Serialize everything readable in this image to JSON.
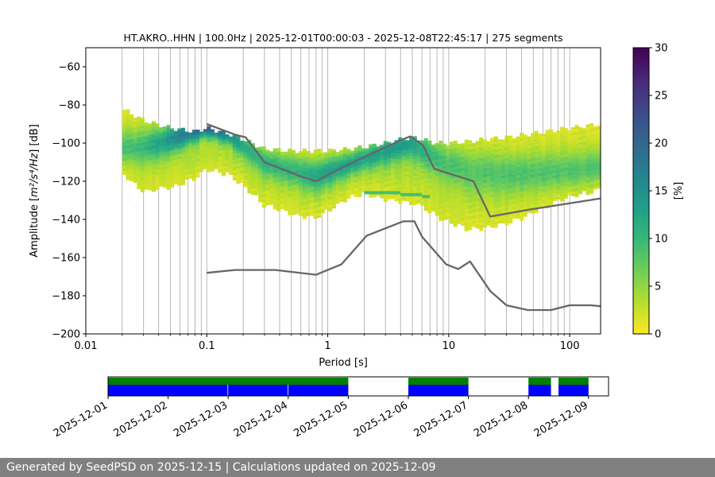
{
  "chart_data": {
    "type": "heatmap",
    "title": "HT.AKRO..HHN | 100.0Hz | 2025-12-01T00:00:03 - 2025-12-08T22:45:17 | 275 segments",
    "xlabel": "Period [s]",
    "ylabel_prefix": "Amplitude [",
    "ylabel_math": "m²/s⁴/Hz",
    "ylabel_suffix": "] [dB]",
    "x_scale": "log",
    "xlim": [
      0.01,
      180
    ],
    "ylim": [
      -200,
      -50
    ],
    "x_ticks": [
      {
        "value": 0.01,
        "label": "0.01"
      },
      {
        "value": 0.1,
        "label": "0.1"
      },
      {
        "value": 1,
        "label": "1"
      },
      {
        "value": 10,
        "label": "10"
      },
      {
        "value": 100,
        "label": "100"
      }
    ],
    "y_ticks": [
      {
        "value": -60,
        "label": "−60"
      },
      {
        "value": -80,
        "label": "−80"
      },
      {
        "value": -100,
        "label": "−100"
      },
      {
        "value": -120,
        "label": "−120"
      },
      {
        "value": -140,
        "label": "−140"
      },
      {
        "value": -160,
        "label": "−160"
      },
      {
        "value": -180,
        "label": "−180"
      },
      {
        "value": -200,
        "label": "−200"
      }
    ],
    "grid": "x-major-and-minor",
    "psd_band": {
      "periods": [
        0.02,
        0.03,
        0.05,
        0.08,
        0.1,
        0.15,
        0.2,
        0.3,
        0.5,
        0.8,
        1,
        1.5,
        2,
        3,
        4,
        5,
        6,
        8,
        10,
        15,
        20,
        30,
        50,
        80,
        100,
        180
      ],
      "upper": [
        -82,
        -88,
        -92,
        -94,
        -92,
        -95,
        -98,
        -103,
        -104,
        -104,
        -104,
        -103,
        -102,
        -100,
        -98,
        -97,
        -98,
        -100,
        -100,
        -99,
        -98,
        -97,
        -95,
        -93,
        -92,
        -90
      ],
      "lower": [
        -115,
        -125,
        -123,
        -118,
        -113,
        -116,
        -122,
        -132,
        -137,
        -139,
        -135,
        -128,
        -126,
        -129,
        -130,
        -131,
        -133,
        -138,
        -141,
        -145,
        -144,
        -142,
        -136,
        -130,
        -128,
        -124
      ],
      "mode": [
        -103,
        -102,
        -98,
        -93,
        -91,
        -95,
        -101,
        -110,
        -114,
        -117,
        -115,
        -111,
        -108,
        -104,
        -101,
        -100,
        -103,
        -108,
        -111,
        -114,
        -115,
        -116,
        -116,
        -116,
        -115,
        -113
      ],
      "mode_strength_percent": [
        5,
        7,
        12,
        18,
        20,
        14,
        10,
        8,
        7,
        9,
        10,
        10,
        10,
        11,
        12,
        11,
        9,
        7,
        6,
        5,
        5,
        5,
        5,
        5,
        5,
        5
      ]
    },
    "secondary_band": {
      "periods": [
        2,
        3,
        4,
        5,
        6,
        7
      ],
      "values": [
        -126,
        -126,
        -127,
        -127,
        -128,
        -129
      ],
      "label": "-127 dB ridge 2–7 s"
    },
    "curves": [
      {
        "periods": [
          0.1,
          0.17,
          0.21,
          0.3,
          0.6,
          0.8,
          1.5,
          2.5,
          4,
          4.8,
          6.1,
          7.6,
          16,
          22,
          45,
          180
        ],
        "values": [
          -90,
          -95.5,
          -97,
          -110,
          -117.5,
          -120,
          -111,
          -104.5,
          -98.5,
          -96.5,
          -101,
          -113.5,
          -120,
          -138.5,
          -135,
          -129
        ]
      },
      {
        "periods": [
          0.1,
          0.17,
          0.37,
          0.8,
          1.3,
          2.1,
          4.2,
          5.2,
          6,
          9.5,
          12,
          15,
          22,
          30,
          45,
          70,
          100,
          150,
          180
        ],
        "values": [
          -168,
          -166.5,
          -166.5,
          -169,
          -163.5,
          -148.5,
          -141,
          -141,
          -149,
          -163.5,
          -166,
          -162,
          -177.5,
          -185,
          -187.5,
          -187.5,
          -185,
          -185,
          -185.5
        ]
      }
    ],
    "colorbar": {
      "label": "[%]",
      "range": [
        0,
        30
      ],
      "ticks": [
        {
          "value": 0,
          "label": "0"
        },
        {
          "value": 5,
          "label": "5"
        },
        {
          "value": 10,
          "label": "10"
        },
        {
          "value": 15,
          "label": "15"
        },
        {
          "value": 20,
          "label": "20"
        },
        {
          "value": 25,
          "label": "25"
        },
        {
          "value": 30,
          "label": "30"
        }
      ],
      "colormap": "viridis_r",
      "colors": [
        "#fde725",
        "#b5de2b",
        "#6ece58",
        "#35b779",
        "#1f9e89",
        "#26828e",
        "#31688e",
        "#3e4989",
        "#482878",
        "#440154"
      ]
    },
    "timeline": {
      "start": "2025-12-01",
      "end": "2025-12-09T08:00",
      "tick_labels": [
        "2025-12-01",
        "2025-12-02",
        "2025-12-03",
        "2025-12-04",
        "2025-12-05",
        "2025-12-06",
        "2025-12-07",
        "2025-12-08",
        "2025-12-09"
      ],
      "coverage_intervals": [
        [
          "2025-12-01T00:00",
          "2025-12-05T00:00"
        ],
        [
          "2025-12-06T00:00",
          "2025-12-07T00:00"
        ],
        [
          "2025-12-08T00:00",
          "2025-12-08T09:00"
        ],
        [
          "2025-12-08T12:00",
          "2025-12-09T00:00"
        ]
      ],
      "segment_intervals": [
        [
          "2025-12-01T00:00",
          "2025-12-02T23:45"
        ],
        [
          "2025-12-03T00:00",
          "2025-12-03T23:45"
        ],
        [
          "2025-12-04T00:00",
          "2025-12-05T00:00"
        ],
        [
          "2025-12-06T00:00",
          "2025-12-07T00:00"
        ],
        [
          "2025-12-08T00:00",
          "2025-12-08T09:00"
        ],
        [
          "2025-12-08T12:00",
          "2025-12-09T00:00"
        ]
      ],
      "coverage_color": "#008000",
      "segment_color": "#0000ff"
    }
  },
  "footer": {
    "text": "Generated by SeedPSD on 2025-12-15 | Calculations updated on 2025-12-09"
  },
  "colors": {
    "curve": "#666666",
    "grid": "#b0b0b0",
    "footer_bg": "#808080"
  }
}
